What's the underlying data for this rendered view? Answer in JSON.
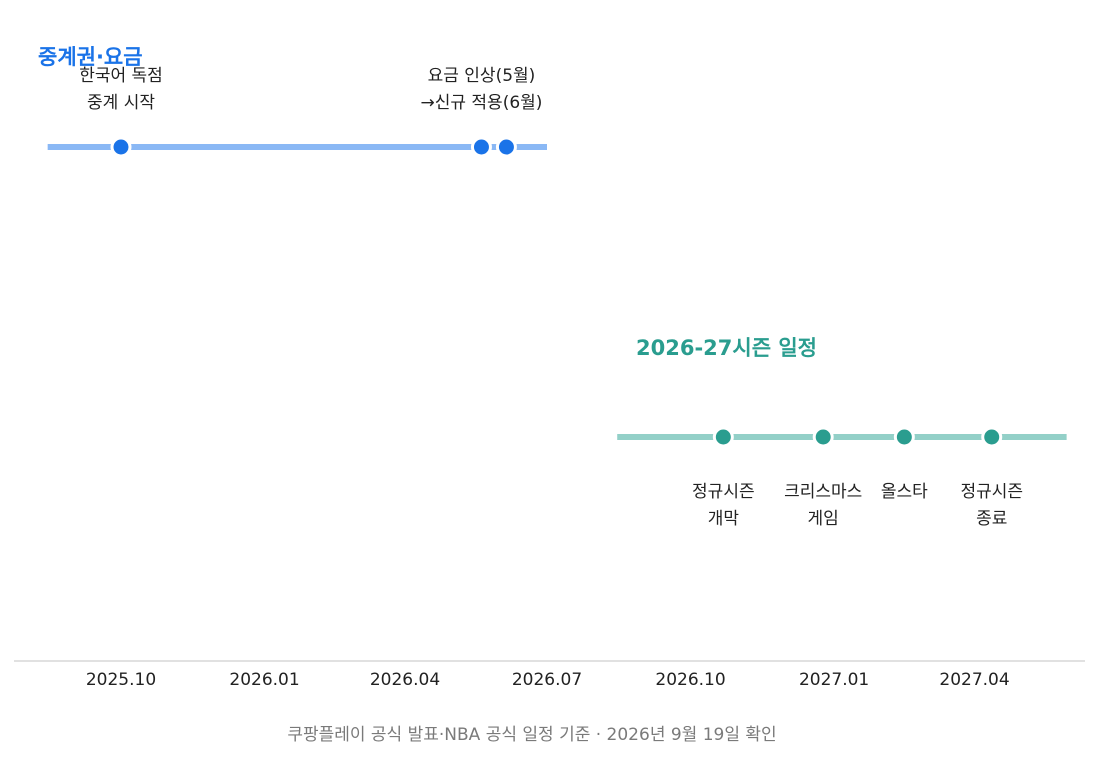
{
  "footnote": "쿠팡플레이 공식 발표·NBA 공식 일정 기준 · 2026년 9월 19일 확인",
  "chart_data": {
    "type": "timeline",
    "x_axis": {
      "range": [
        "2025-08-15",
        "2027-06-05"
      ],
      "ticks": [
        {
          "date": "2025-10-01",
          "label": "2025.10"
        },
        {
          "date": "2026-01-01",
          "label": "2026.01"
        },
        {
          "date": "2026-04-01",
          "label": "2026.04"
        },
        {
          "date": "2026-07-01",
          "label": "2026.07"
        },
        {
          "date": "2026-10-01",
          "label": "2026.10"
        },
        {
          "date": "2027-01-01",
          "label": "2027.01"
        },
        {
          "date": "2027-04-01",
          "label": "2027.04"
        }
      ]
    },
    "groups": [
      {
        "title": "중계권·요금",
        "color": "#1a73e8",
        "line_color": "#8ab8f5",
        "label_position": "above",
        "span": [
          "2025-08-15",
          "2026-07-01"
        ],
        "events": [
          {
            "date": "2025-10-01",
            "label": [
              "한국어 독점",
              "중계 시작"
            ]
          },
          {
            "date": "2026-05-20",
            "label": [
              "요금 인상(5월)",
              "→신규 적용(6월)"
            ]
          },
          {
            "date": "2026-06-05",
            "label": []
          }
        ]
      },
      {
        "title": "2026-27시즌 일정",
        "color": "#2a9d8f",
        "line_color": "#93d0c8",
        "label_position": "below",
        "span": [
          "2026-08-15",
          "2027-05-30"
        ],
        "events": [
          {
            "date": "2026-10-22",
            "label": [
              "정규시즌",
              "개막"
            ]
          },
          {
            "date": "2026-12-25",
            "label": [
              "크리스마스",
              "게임"
            ]
          },
          {
            "date": "2027-02-15",
            "label": [
              "올스타"
            ]
          },
          {
            "date": "2027-04-12",
            "label": [
              "정규시즌",
              "종료"
            ]
          }
        ]
      }
    ]
  }
}
